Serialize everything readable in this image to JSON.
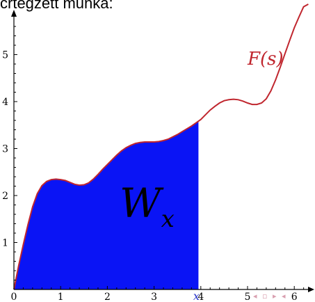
{
  "caption": "crtegzett munka:",
  "chart_data": {
    "type": "area",
    "function_label": "F(s)",
    "area_label": "W",
    "area_subscript": "x",
    "marker_label": "x",
    "marker_x": 3.95,
    "xlim": [
      0,
      6.3
    ],
    "ylim": [
      0,
      5.9
    ],
    "x_ticks": [
      "0",
      "1",
      "2",
      "3",
      "4",
      "5",
      "6"
    ],
    "y_ticks": [
      "1",
      "2",
      "3",
      "4",
      "5"
    ],
    "grid": false,
    "x": [
      0,
      0.1,
      0.2,
      0.3,
      0.4,
      0.5,
      0.6,
      0.7,
      0.8,
      0.9,
      1.0,
      1.1,
      1.2,
      1.3,
      1.4,
      1.5,
      1.6,
      1.7,
      1.8,
      1.9,
      2.0,
      2.1,
      2.2,
      2.3,
      2.4,
      2.5,
      2.6,
      2.7,
      2.8,
      2.9,
      3.0,
      3.1,
      3.2,
      3.3,
      3.4,
      3.5,
      3.6,
      3.7,
      3.8,
      3.9,
      4.0,
      4.1,
      4.2,
      4.3,
      4.4,
      4.5,
      4.6,
      4.7,
      4.8,
      4.9,
      5.0,
      5.1,
      5.2,
      5.3,
      5.4,
      5.5,
      5.6,
      5.7,
      5.8,
      5.9,
      6.0,
      6.1,
      6.2,
      6.3
    ],
    "y": [
      0,
      0.5,
      0.95,
      1.38,
      1.76,
      2.04,
      2.21,
      2.3,
      2.34,
      2.35,
      2.34,
      2.32,
      2.28,
      2.24,
      2.22,
      2.23,
      2.27,
      2.35,
      2.45,
      2.56,
      2.66,
      2.76,
      2.86,
      2.95,
      3.02,
      3.07,
      3.11,
      3.13,
      3.14,
      3.14,
      3.14,
      3.15,
      3.17,
      3.2,
      3.25,
      3.3,
      3.36,
      3.42,
      3.48,
      3.55,
      3.62,
      3.72,
      3.82,
      3.9,
      3.97,
      4.02,
      4.04,
      4.05,
      4.04,
      4.01,
      3.97,
      3.94,
      3.94,
      3.97,
      4.06,
      4.23,
      4.46,
      4.73,
      5.02,
      5.3,
      5.57,
      5.8,
      6.02,
      6.2
    ],
    "colors": {
      "curve": "#c0262e",
      "area": "#0a14f5",
      "axis": "#000000",
      "marker": "#2a35c9"
    }
  },
  "nav_controls": "◂ ▫ ▸ ◂"
}
